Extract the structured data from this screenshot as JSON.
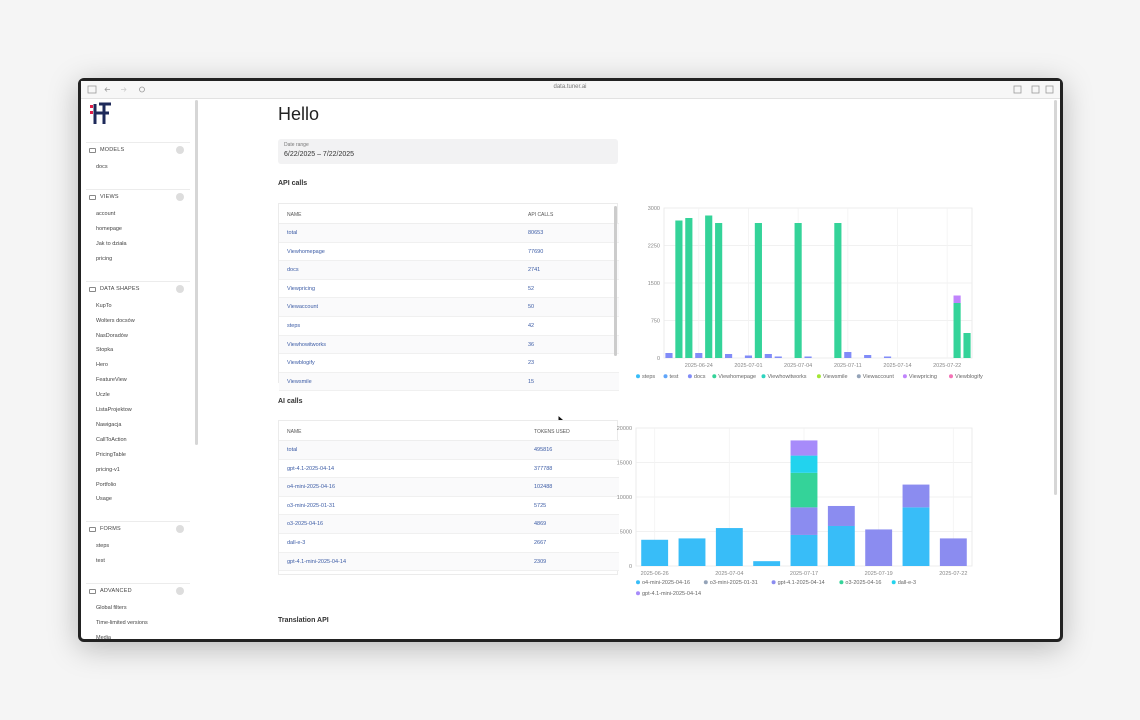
{
  "browser": {
    "url": "data.tuner.ai"
  },
  "sidebar": {
    "sections": [
      {
        "title": "MODELS",
        "items": [
          "docs"
        ]
      },
      {
        "title": "VIEWS",
        "items": [
          "account",
          "homepage",
          "Jak to działa",
          "pricing"
        ]
      },
      {
        "title": "DATA SHAPES",
        "items": [
          "KupTo",
          "Wolters docsów",
          "NasDoradów",
          "Stopka",
          "Hero",
          "FeatureView",
          "Uczle",
          "ListaProjektow",
          "Nawigacja",
          "CallToAction",
          "PricingTable",
          "pricing-v1",
          "Portfolio",
          "Usage"
        ]
      },
      {
        "title": "FORMS",
        "items": [
          "steps",
          "test"
        ]
      },
      {
        "title": "ADVANCED",
        "items": [
          "Global filters",
          "Time-limited versions",
          "Media"
        ]
      }
    ]
  },
  "main": {
    "title": "Hello",
    "date_range": {
      "label": "Date range",
      "value": "6/22/2025 – 7/22/2025"
    },
    "api_calls": {
      "heading": "API calls",
      "table": {
        "columns": [
          "NAME",
          "API CALLS"
        ],
        "rows": [
          [
            "total",
            80653
          ],
          [
            "Viewhomepage",
            77690
          ],
          [
            "docs",
            2741
          ],
          [
            "Viewpricing",
            52
          ],
          [
            "Viewaccount",
            50
          ],
          [
            "steps",
            42
          ],
          [
            "Viewhowitworks",
            36
          ],
          [
            "Viewblogify",
            23
          ],
          [
            "Viewsmile",
            15
          ]
        ]
      }
    },
    "ai_calls": {
      "heading": "AI calls",
      "table": {
        "columns": [
          "NAME",
          "TOKENS USED"
        ],
        "rows": [
          [
            "total",
            495816
          ],
          [
            "gpt-4.1-2025-04-14",
            377788
          ],
          [
            "o4-mini-2025-04-16",
            102488
          ],
          [
            "o3-mini-2025-01-31",
            5725
          ],
          [
            "o3-2025-04-16",
            4869
          ],
          [
            "dall-e-3",
            2667
          ],
          [
            "gpt-4.1-mini-2025-04-14",
            2309
          ]
        ]
      }
    },
    "translation_api": {
      "heading": "Translation API"
    }
  },
  "chart_data": [
    {
      "type": "bar",
      "stacked": true,
      "grid": true,
      "ylim": [
        0,
        3000
      ],
      "yticks": [
        0,
        750,
        1500,
        2250,
        3000
      ],
      "categories": [
        null,
        null,
        null,
        "2025-06-24",
        null,
        null,
        null,
        null,
        "2025-07-01",
        null,
        null,
        null,
        null,
        "2025-07-04",
        null,
        null,
        null,
        null,
        "2025-07-11",
        null,
        null,
        null,
        null,
        "2025-07-14",
        null,
        null,
        null,
        null,
        "2025-07-22",
        null,
        null
      ],
      "series": [
        {
          "name": "steps",
          "color": "#38bdf8",
          "values": [
            0,
            0,
            0,
            0,
            0,
            0,
            0,
            0,
            0,
            0,
            0,
            0,
            0,
            0,
            0,
            0,
            0,
            0,
            0,
            0,
            0,
            0,
            0,
            0,
            0,
            0,
            0,
            0,
            0,
            0,
            0
          ]
        },
        {
          "name": "test",
          "color": "#60a5fa",
          "values": [
            0,
            0,
            0,
            0,
            0,
            0,
            0,
            0,
            0,
            0,
            0,
            0,
            0,
            0,
            0,
            0,
            0,
            0,
            0,
            0,
            0,
            0,
            0,
            0,
            0,
            0,
            0,
            0,
            0,
            0,
            0
          ]
        },
        {
          "name": "docs",
          "color": "#818cf8",
          "values": [
            100,
            0,
            0,
            100,
            0,
            0,
            80,
            0,
            50,
            0,
            80,
            30,
            0,
            0,
            30,
            0,
            0,
            0,
            120,
            0,
            60,
            0,
            30,
            0,
            0,
            0,
            0,
            0,
            0,
            0,
            0
          ]
        },
        {
          "name": "Viewhomepage",
          "color": "#34d399",
          "values": [
            0,
            2750,
            2800,
            0,
            2850,
            2700,
            0,
            0,
            0,
            2700,
            0,
            0,
            0,
            2700,
            0,
            0,
            0,
            2700,
            0,
            0,
            0,
            0,
            0,
            0,
            0,
            0,
            0,
            0,
            0,
            1100,
            500
          ]
        },
        {
          "name": "Viewhowitworks",
          "color": "#2dd4bf",
          "values": [
            0,
            0,
            0,
            0,
            0,
            0,
            0,
            0,
            0,
            0,
            0,
            0,
            0,
            0,
            0,
            0,
            0,
            0,
            0,
            0,
            0,
            0,
            0,
            0,
            0,
            0,
            0,
            0,
            0,
            0,
            0
          ]
        },
        {
          "name": "Viewsmile",
          "color": "#a3e635",
          "values": [
            0,
            0,
            0,
            0,
            0,
            0,
            0,
            0,
            0,
            0,
            0,
            0,
            0,
            0,
            0,
            0,
            0,
            0,
            0,
            0,
            0,
            0,
            0,
            0,
            0,
            0,
            0,
            0,
            0,
            0,
            0
          ]
        },
        {
          "name": "Viewaccount",
          "color": "#94a3b8",
          "values": [
            0,
            0,
            0,
            0,
            0,
            0,
            0,
            0,
            0,
            0,
            0,
            0,
            0,
            0,
            0,
            0,
            0,
            0,
            0,
            0,
            0,
            0,
            0,
            0,
            0,
            0,
            0,
            0,
            0,
            0,
            0
          ]
        },
        {
          "name": "Viewpricing",
          "color": "#c084fc",
          "values": [
            0,
            0,
            0,
            0,
            0,
            0,
            0,
            0,
            0,
            0,
            0,
            0,
            0,
            0,
            0,
            0,
            0,
            0,
            0,
            0,
            0,
            0,
            0,
            0,
            0,
            0,
            0,
            0,
            0,
            150,
            0
          ]
        },
        {
          "name": "Viewblogify",
          "color": "#f472b6",
          "values": [
            0,
            0,
            0,
            0,
            0,
            0,
            0,
            0,
            0,
            0,
            0,
            0,
            0,
            0,
            0,
            0,
            0,
            0,
            0,
            0,
            0,
            0,
            0,
            0,
            0,
            0,
            0,
            0,
            0,
            0,
            0
          ]
        }
      ]
    },
    {
      "type": "bar",
      "stacked": true,
      "grid": true,
      "ylim": [
        0,
        20000
      ],
      "yticks": [
        0,
        5000,
        10000,
        15000,
        20000
      ],
      "categories": [
        "2025-06-26",
        null,
        "2025-07-04",
        null,
        "2025-07-17",
        null,
        "2025-07-19",
        null,
        "2025-07-22"
      ],
      "series": [
        {
          "name": "o4-mini-2025-04-16",
          "color": "#38bdf8",
          "values": [
            3800,
            4000,
            5500,
            700,
            4500,
            5800,
            0,
            8500,
            0
          ]
        },
        {
          "name": "o3-mini-2025-01-31",
          "color": "#94a3b8",
          "values": [
            0,
            0,
            0,
            0,
            0,
            0,
            0,
            0,
            0
          ]
        },
        {
          "name": "gpt-4.1-2025-04-14",
          "color": "#8b8cf0",
          "values": [
            0,
            0,
            0,
            0,
            4000,
            2900,
            5300,
            3300,
            4000
          ]
        },
        {
          "name": "o3-2025-04-16",
          "color": "#34d399",
          "values": [
            0,
            0,
            0,
            0,
            5000,
            0,
            0,
            0,
            0
          ]
        },
        {
          "name": "dall-e-3",
          "color": "#22d3ee",
          "values": [
            0,
            0,
            0,
            0,
            2500,
            0,
            0,
            0,
            0
          ]
        },
        {
          "name": "gpt-4.1-mini-2025-04-14",
          "color": "#a78bfa",
          "values": [
            0,
            0,
            0,
            0,
            2200,
            0,
            0,
            0,
            0
          ]
        }
      ]
    }
  ]
}
